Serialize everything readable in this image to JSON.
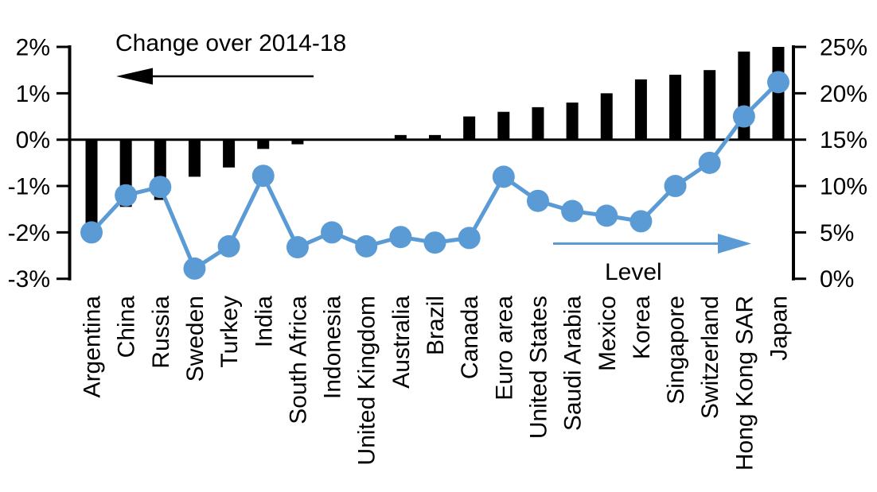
{
  "chart_data": {
    "type": "bar+line dual-axis combo",
    "categories": [
      "Argentina",
      "China",
      "Russia",
      "Sweden",
      "Turkey",
      "India",
      "South Africa",
      "Indonesia",
      "United Kingdom",
      "Australia",
      "Brazil",
      "Canada",
      "Euro area",
      "United States",
      "Saudi Arabia",
      "Mexico",
      "Korea",
      "Singapore",
      "Switzerland",
      "Hong Kong SAR",
      "Japan"
    ],
    "series": [
      {
        "name": "Change over 2014-18",
        "type": "bar",
        "axis": "left",
        "unit": "%",
        "values": [
          -1.8,
          -1.45,
          -1.3,
          -0.8,
          -0.6,
          -0.2,
          -0.1,
          0,
          0,
          0.1,
          0.1,
          0.5,
          0.6,
          0.7,
          0.8,
          1.0,
          1.3,
          1.4,
          1.5,
          1.9,
          2.0
        ]
      },
      {
        "name": "Level",
        "type": "line",
        "axis": "right",
        "unit": "%",
        "values": [
          5.0,
          9.0,
          9.9,
          1.1,
          3.5,
          11.1,
          3.4,
          5.0,
          3.5,
          4.5,
          3.9,
          4.4,
          11.0,
          8.4,
          7.3,
          6.8,
          6.2,
          10.0,
          12.5,
          17.5,
          21.2
        ]
      }
    ],
    "left_axis": {
      "min": -3,
      "max": 2,
      "tick_step": 1,
      "tick_labels": [
        "2%",
        "1%",
        "0%",
        "-1%",
        "-2%",
        "-3%"
      ]
    },
    "right_axis": {
      "min": 0,
      "max": 25,
      "tick_step": 5,
      "tick_labels": [
        "25%",
        "20%",
        "15%",
        "10%",
        "5%",
        "0%"
      ]
    },
    "annotations": {
      "bar_series_label": "Change over 2014-18",
      "line_series_label": "Level"
    },
    "colors": {
      "bar": "#000000",
      "line": "#5B9BD5",
      "background": "#FFFFFF",
      "text": "#000000"
    },
    "layout_hints": {
      "grid": false,
      "x_labels_rotated": 90,
      "legend": "arrow annotations pointing to each axis"
    }
  }
}
